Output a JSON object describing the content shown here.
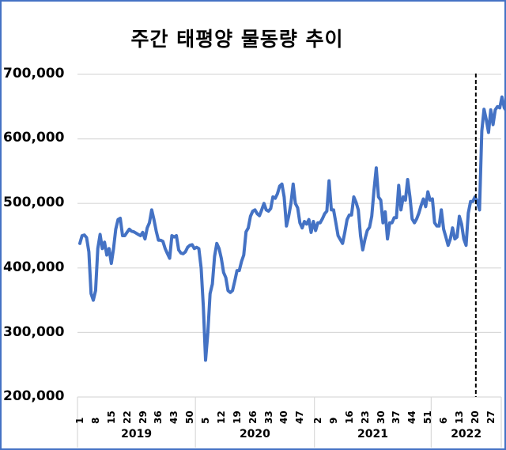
{
  "chart_data": {
    "type": "line",
    "title": "주간 태평양 물동량 추이",
    "xlabel": "",
    "ylabel": "",
    "ylim": [
      200000,
      700000
    ],
    "yticks": [
      "700,000",
      "600,000",
      "500,000",
      "400,000",
      "300,000",
      "200,000"
    ],
    "grid": true,
    "legend": "none",
    "line_color": "#4472c4",
    "annotation": {
      "type": "vertical-dashed-line",
      "at": "2022 week 20",
      "color": "#000000"
    },
    "x_groups": [
      {
        "year": "2019",
        "ticks": [
          "1",
          "8",
          "15",
          "22",
          "29",
          "36",
          "43",
          "50"
        ]
      },
      {
        "year": "2020",
        "ticks": [
          "5",
          "12",
          "19",
          "26",
          "33",
          "40",
          "47"
        ]
      },
      {
        "year": "2021",
        "ticks": [
          "2",
          "9",
          "16",
          "23",
          "30",
          "37",
          "44",
          "51"
        ]
      },
      {
        "year": "2022",
        "ticks": [
          "6",
          "13",
          "20",
          "27"
        ]
      }
    ],
    "series": [
      {
        "name": "주간 태평양 물동량",
        "values": [
          438000,
          450000,
          451000,
          447000,
          425000,
          360000,
          350000,
          365000,
          430000,
          452000,
          430000,
          440000,
          420000,
          430000,
          407000,
          430000,
          460000,
          475000,
          477000,
          450000,
          450000,
          455000,
          460000,
          457000,
          456000,
          454000,
          452000,
          450000,
          455000,
          445000,
          462000,
          470000,
          490000,
          475000,
          457000,
          443000,
          443000,
          441000,
          430000,
          422000,
          415000,
          450000,
          448000,
          450000,
          428000,
          423000,
          422000,
          425000,
          432000,
          435000,
          436000,
          430000,
          432000,
          430000,
          400000,
          340000,
          257000,
          300000,
          360000,
          375000,
          418000,
          438000,
          430000,
          415000,
          393000,
          385000,
          365000,
          362000,
          365000,
          380000,
          396000,
          396000,
          410000,
          420000,
          456000,
          462000,
          480000,
          488000,
          490000,
          484000,
          481000,
          490000,
          500000,
          490000,
          488000,
          492000,
          510000,
          508000,
          515000,
          527000,
          530000,
          510000,
          465000,
          480000,
          500000,
          530000,
          500000,
          493000,
          470000,
          462000,
          472000,
          468000,
          475000,
          455000,
          472000,
          458000,
          470000,
          470000,
          476000,
          484000,
          488000,
          535000,
          490000,
          490000,
          470000,
          450000,
          444000,
          438000,
          455000,
          475000,
          482000,
          482000,
          510000,
          502000,
          490000,
          450000,
          428000,
          445000,
          458000,
          463000,
          480000,
          520000,
          555000,
          510000,
          505000,
          470000,
          487000,
          445000,
          470000,
          470000,
          478000,
          478000,
          528000,
          490000,
          510000,
          505000,
          537000,
          510000,
          476000,
          470000,
          476000,
          485000,
          497000,
          507000,
          495000,
          518000,
          505000,
          507000,
          470000,
          465000,
          465000,
          490000,
          460000,
          448000,
          435000,
          445000,
          462000,
          445000,
          448000,
          480000,
          468000,
          445000,
          435000,
          485000,
          503000,
          503000,
          510000,
          503000,
          490000,
          612000,
          646000,
          630000,
          610000,
          645000,
          622000,
          645000,
          650000,
          648000,
          665000,
          648000,
          643000
        ]
      }
    ]
  }
}
